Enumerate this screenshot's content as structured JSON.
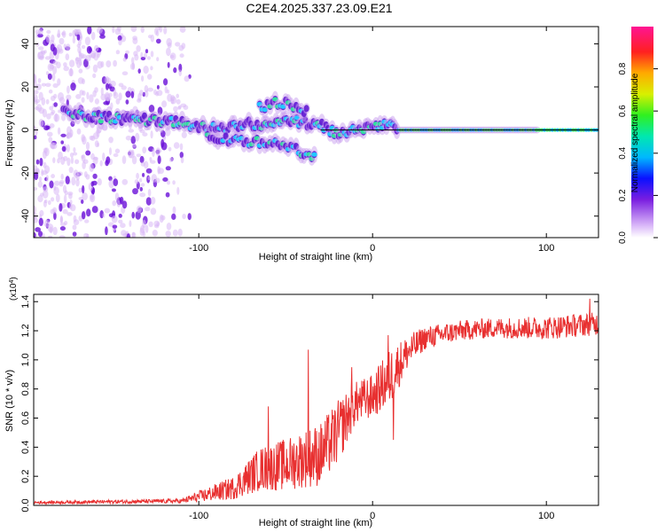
{
  "title": "C2E4.2025.337.23.09.E21",
  "colors": {
    "snr_line": "#e83030",
    "track_core": "#000000",
    "background": "#ffffff",
    "axis": "#000000"
  },
  "chart_data": [
    {
      "type": "heatmap",
      "name": "spectrogram",
      "xlabel": "Height of straight line (km)",
      "ylabel": "Frequency (Hz)",
      "xlim": [
        -195,
        130
      ],
      "ylim": [
        -50,
        48
      ],
      "x_ticks": [
        -100,
        0,
        100
      ],
      "x_tick_labels": [
        "-100",
        "0",
        "100"
      ],
      "y_ticks": [
        -40,
        -20,
        0,
        20,
        40
      ],
      "y_tick_labels": [
        "-40",
        "-20",
        "0",
        "20",
        "40"
      ],
      "noise_extent_km": [
        -195,
        -105
      ],
      "track": [
        {
          "x": -178,
          "y": 8
        },
        {
          "x": -160,
          "y": 6
        },
        {
          "x": -140,
          "y": 5
        },
        {
          "x": -120,
          "y": 4
        },
        {
          "x": -100,
          "y": 2
        },
        {
          "x": -85,
          "y": 0
        },
        {
          "x": -75,
          "y": 3
        },
        {
          "x": -60,
          "y": 2
        },
        {
          "x": -50,
          "y": 5
        },
        {
          "x": -40,
          "y": 3
        },
        {
          "x": -30,
          "y": 2
        },
        {
          "x": -20,
          "y": -2
        },
        {
          "x": -10,
          "y": 1
        },
        {
          "x": 0,
          "y": 1
        },
        {
          "x": 5,
          "y": 3
        },
        {
          "x": 15,
          "y": 0
        },
        {
          "x": 40,
          "y": 0
        },
        {
          "x": 80,
          "y": 0
        },
        {
          "x": 130,
          "y": 0
        }
      ],
      "lower_branch": [
        {
          "x": -95,
          "y": -2
        },
        {
          "x": -80,
          "y": -5
        },
        {
          "x": -60,
          "y": -6
        },
        {
          "x": -45,
          "y": -9
        },
        {
          "x": -33,
          "y": -12
        }
      ],
      "upper_branch": [
        {
          "x": -65,
          "y": 10
        },
        {
          "x": -55,
          "y": 13
        },
        {
          "x": -45,
          "y": 11
        },
        {
          "x": -38,
          "y": 8
        }
      ],
      "colorbar": {
        "label": "Normalized spectral amplitude",
        "range": [
          0.0,
          1.0
        ],
        "ticks": [
          0.0,
          0.2,
          0.4,
          0.6,
          0.8
        ],
        "tick_labels": [
          "0.0",
          "0.2",
          "0.4",
          "0.6",
          "0.8"
        ]
      }
    },
    {
      "type": "line",
      "name": "snr",
      "xlabel": "Height of straight line (km)",
      "ylabel": "SNR (10 * v/v)",
      "scale_label": "(x10",
      "scale_exponent": "4",
      "scale_close": ")",
      "xlim": [
        -195,
        130
      ],
      "ylim": [
        0,
        1.45
      ],
      "x_ticks": [
        -100,
        0,
        100
      ],
      "x_tick_labels": [
        "-100",
        "0",
        "100"
      ],
      "y_ticks": [
        0.0,
        0.2,
        0.4,
        0.6,
        0.8,
        1.0,
        1.2,
        1.4
      ],
      "y_tick_labels": [
        "0.0",
        "0.2",
        "0.4",
        "0.6",
        "0.8",
        "1.0",
        "1.2",
        "1.4"
      ],
      "envelope": [
        {
          "x": -195,
          "mean": 0.02,
          "amp": 0.01
        },
        {
          "x": -110,
          "mean": 0.03,
          "amp": 0.015
        },
        {
          "x": -100,
          "mean": 0.06,
          "amp": 0.04
        },
        {
          "x": -80,
          "mean": 0.12,
          "amp": 0.08
        },
        {
          "x": -65,
          "mean": 0.25,
          "amp": 0.15
        },
        {
          "x": -50,
          "mean": 0.28,
          "amp": 0.18
        },
        {
          "x": -40,
          "mean": 0.32,
          "amp": 0.2
        },
        {
          "x": -30,
          "mean": 0.35,
          "amp": 0.22
        },
        {
          "x": -20,
          "mean": 0.5,
          "amp": 0.22
        },
        {
          "x": -10,
          "mean": 0.7,
          "amp": 0.15
        },
        {
          "x": 0,
          "mean": 0.75,
          "amp": 0.15
        },
        {
          "x": 10,
          "mean": 0.88,
          "amp": 0.2
        },
        {
          "x": 20,
          "mean": 1.05,
          "amp": 0.12
        },
        {
          "x": 30,
          "mean": 1.15,
          "amp": 0.08
        },
        {
          "x": 50,
          "mean": 1.2,
          "amp": 0.07
        },
        {
          "x": 70,
          "mean": 1.22,
          "amp": 0.07
        },
        {
          "x": 100,
          "mean": 1.22,
          "amp": 0.08
        },
        {
          "x": 130,
          "mean": 1.25,
          "amp": 0.08
        }
      ],
      "spikes": [
        {
          "x": -60,
          "y": 0.68
        },
        {
          "x": -37,
          "y": 1.07
        },
        {
          "x": -12,
          "y": 0.95
        },
        {
          "x": 9,
          "y": 1.17
        },
        {
          "x": 12,
          "y": 0.45
        },
        {
          "x": 125,
          "y": 1.42
        }
      ]
    }
  ]
}
